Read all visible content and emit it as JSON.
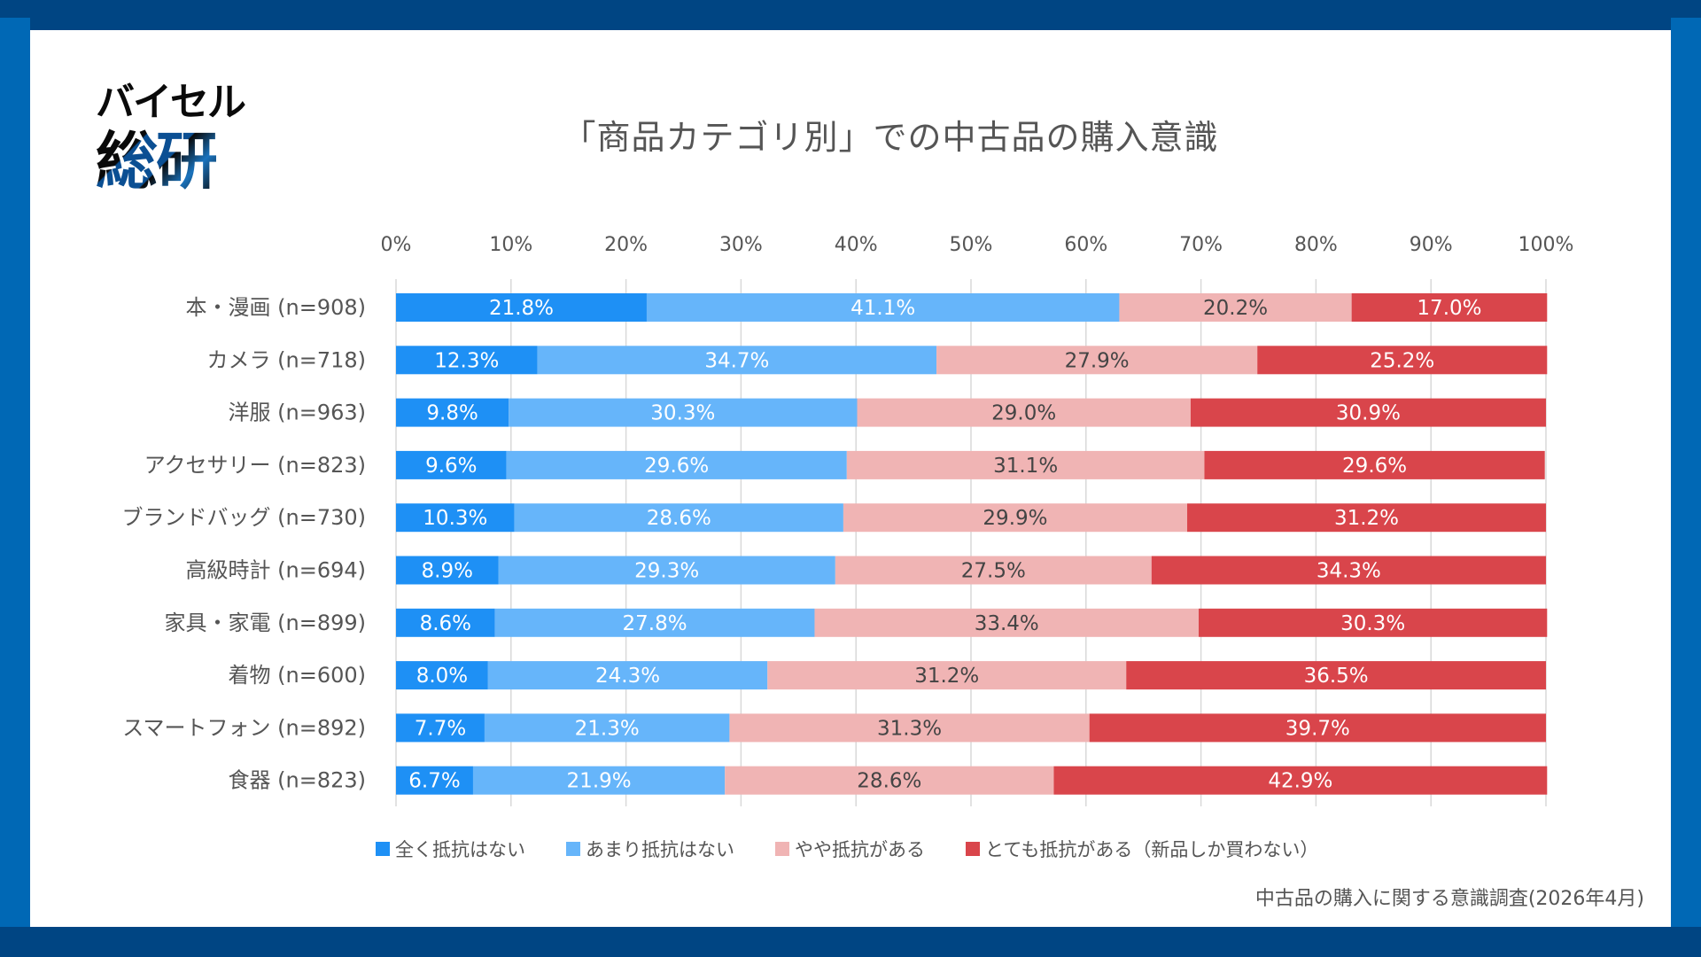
{
  "logo": {
    "kana": "バイセル",
    "kanji": "総研"
  },
  "title": "「商品カテゴリ別」での中古品の購入意識",
  "source": "中古品の購入に関する意識調査(2026年4月)",
  "colors": {
    "frame_dark": "#004583",
    "frame_blue": "#0068B5",
    "series": [
      "#1E90F5",
      "#66B5FA",
      "#F0B4B4",
      "#D9454B"
    ],
    "label_light": "#ffffff",
    "label_dark": "#444444"
  },
  "chart_data": {
    "type": "bar",
    "orientation": "horizontal",
    "stacked": true,
    "title": "「商品カテゴリ別」での中古品の購入意識",
    "xlabel": "",
    "ylabel": "",
    "xlim": [
      0,
      100
    ],
    "x_ticks": [
      "0%",
      "10%",
      "20%",
      "30%",
      "40%",
      "50%",
      "60%",
      "70%",
      "80%",
      "90%",
      "100%"
    ],
    "grid": true,
    "legend_position": "bottom",
    "categories": [
      "本・漫画 (n=908)",
      "カメラ (n=718)",
      "洋服 (n=963)",
      "アクセサリー (n=823)",
      "ブランドバッグ (n=730)",
      "高級時計 (n=694)",
      "家具・家電 (n=899)",
      "着物 (n=600)",
      "スマートフォン (n=892)",
      "食器 (n=823)"
    ],
    "series": [
      {
        "name": "全く抵抗はない",
        "values": [
          21.8,
          12.3,
          9.8,
          9.6,
          10.3,
          8.9,
          8.6,
          8.0,
          7.7,
          6.7
        ]
      },
      {
        "name": "あまり抵抗はない",
        "values": [
          41.1,
          34.7,
          30.3,
          29.6,
          28.6,
          29.3,
          27.8,
          24.3,
          21.3,
          21.9
        ]
      },
      {
        "name": "やや抵抗がある",
        "values": [
          20.2,
          27.9,
          29.0,
          31.1,
          29.9,
          27.5,
          33.4,
          31.2,
          31.3,
          28.6
        ]
      },
      {
        "name": "とても抵抗がある（新品しか買わない）",
        "values": [
          17.0,
          25.2,
          30.9,
          29.6,
          31.2,
          34.3,
          30.3,
          36.5,
          39.7,
          42.9
        ]
      }
    ],
    "value_suffix": "%"
  }
}
